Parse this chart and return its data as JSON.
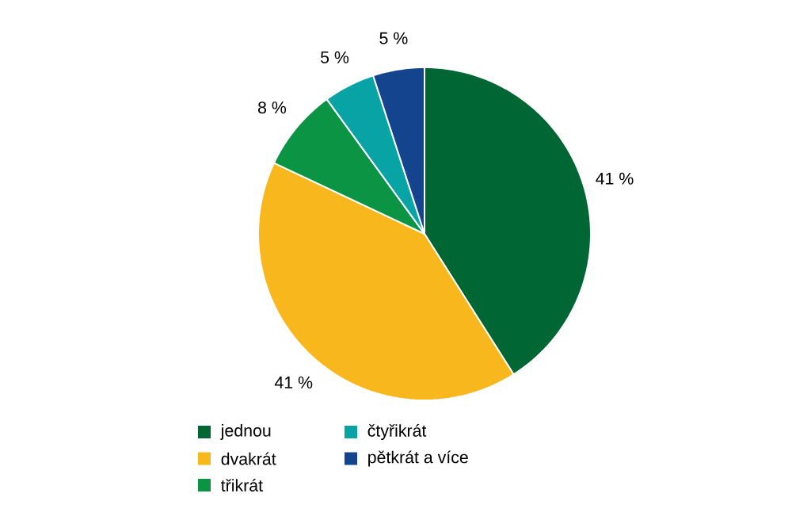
{
  "chart_data": {
    "type": "pie",
    "categories": [
      "jednou",
      "dvakrát",
      "třikrát",
      "čtyřikrát",
      "pětkrát a více"
    ],
    "values": [
      41,
      41,
      8,
      5,
      5
    ],
    "colors": [
      "#006633",
      "#f8b71c",
      "#0a9444",
      "#08a3a5",
      "#15448f"
    ],
    "value_labels": [
      "41 %",
      "41 %",
      "8 %",
      "5 %",
      "5 %"
    ],
    "legend": "bottom"
  }
}
